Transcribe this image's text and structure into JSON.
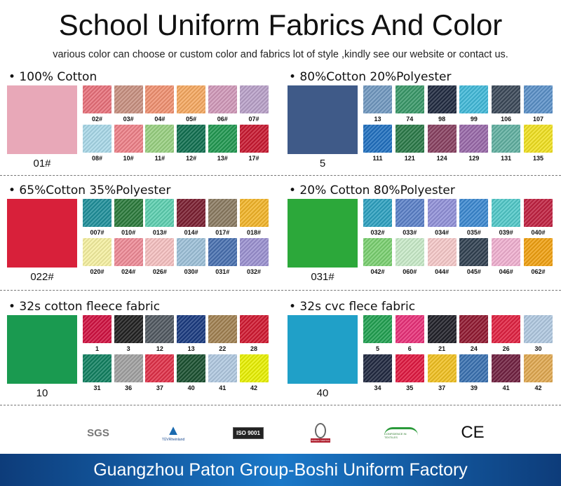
{
  "title": "School Uniform Fabrics And Color",
  "subtitle": "various color can choose or custom color and fabrics lot of style ,kindly see our website or contact us.",
  "sections": [
    {
      "title": "• 100% Cotton",
      "main": {
        "label": "01#",
        "color": "#e8a8b8"
      },
      "swatches": [
        {
          "label": "02#",
          "color": "#e8707a"
        },
        {
          "label": "03#",
          "color": "#c89080"
        },
        {
          "label": "04#",
          "color": "#f09070"
        },
        {
          "label": "05#",
          "color": "#f5a860"
        },
        {
          "label": "06#",
          "color": "#d098b8"
        },
        {
          "label": "07#",
          "color": "#b8a0c8"
        },
        {
          "label": "08#",
          "color": "#a8d8e8"
        },
        {
          "label": "10#",
          "color": "#ee8088"
        },
        {
          "label": "11#",
          "color": "#98d080"
        },
        {
          "label": "12#",
          "color": "#107050"
        },
        {
          "label": "13#",
          "color": "#209850"
        },
        {
          "label": "17#",
          "color": "#c81830"
        }
      ]
    },
    {
      "title": "• 80%Cotton 20%Polyester",
      "main": {
        "label": "5",
        "color": "#3f5a88"
      },
      "swatches": [
        {
          "label": "13",
          "color": "#7098c0"
        },
        {
          "label": "74",
          "color": "#389868"
        },
        {
          "label": "98",
          "color": "#202a40"
        },
        {
          "label": "99",
          "color": "#40b8d8"
        },
        {
          "label": "106",
          "color": "#3a4858"
        },
        {
          "label": "107",
          "color": "#5a90c8"
        },
        {
          "label": "111",
          "color": "#2070c0"
        },
        {
          "label": "121",
          "color": "#2a7a48"
        },
        {
          "label": "124",
          "color": "#884060"
        },
        {
          "label": "129",
          "color": "#9868a8"
        },
        {
          "label": "131",
          "color": "#60b0a0"
        },
        {
          "label": "135",
          "color": "#f0e020"
        }
      ]
    },
    {
      "title": "• 65%Cotton 35%Polyester",
      "main": {
        "label": "022#",
        "color": "#d8203a"
      },
      "swatches": [
        {
          "label": "007#",
          "color": "#1e8f9a"
        },
        {
          "label": "010#",
          "color": "#2a7a3a"
        },
        {
          "label": "013#",
          "color": "#5ccfb0"
        },
        {
          "label": "014#",
          "color": "#7a1e30"
        },
        {
          "label": "017#",
          "color": "#8a7a60"
        },
        {
          "label": "018#",
          "color": "#f2b428"
        },
        {
          "label": "020#",
          "color": "#f5f0a0"
        },
        {
          "label": "024#",
          "color": "#ee8a96"
        },
        {
          "label": "026#",
          "color": "#f5c0c0"
        },
        {
          "label": "030#",
          "color": "#9cc0d8"
        },
        {
          "label": "031#",
          "color": "#4870b0"
        },
        {
          "label": "032#",
          "color": "#9a90d0"
        }
      ]
    },
    {
      "title": "• 20% Cotton 80%Polyester",
      "main": {
        "label": "031#",
        "color": "#2ca83a"
      },
      "swatches": [
        {
          "label": "032#",
          "color": "#2ca0c0"
        },
        {
          "label": "033#",
          "color": "#5a80c8"
        },
        {
          "label": "034#",
          "color": "#9090d8"
        },
        {
          "label": "035#",
          "color": "#3a88d0"
        },
        {
          "label": "039#",
          "color": "#50c8c8"
        },
        {
          "label": "040#",
          "color": "#c02040"
        },
        {
          "label": "042#",
          "color": "#7ad070"
        },
        {
          "label": "060#",
          "color": "#c8eac8"
        },
        {
          "label": "044#",
          "color": "#f5c8c8"
        },
        {
          "label": "045#",
          "color": "#304050"
        },
        {
          "label": "046#",
          "color": "#f0b0d0"
        },
        {
          "label": "062#",
          "color": "#f0a010"
        }
      ]
    },
    {
      "title": "• 32s cotton fleece fabric",
      "main": {
        "label": "10",
        "color": "#1a9a50"
      },
      "swatches": [
        {
          "label": "1",
          "color": "#d01040"
        },
        {
          "label": "3",
          "color": "#202020"
        },
        {
          "label": "12",
          "color": "#505860"
        },
        {
          "label": "13",
          "color": "#1a3a80"
        },
        {
          "label": "22",
          "color": "#a08050"
        },
        {
          "label": "28",
          "color": "#d01830"
        },
        {
          "label": "31",
          "color": "#108060"
        },
        {
          "label": "36",
          "color": "#a0a0a0"
        },
        {
          "label": "37",
          "color": "#e03048"
        },
        {
          "label": "40",
          "color": "#1a5030"
        },
        {
          "label": "41",
          "color": "#b0c8e0"
        },
        {
          "label": "42",
          "color": "#e8f000"
        }
      ]
    },
    {
      "title": "• 32s cvc flece fabric",
      "main": {
        "label": "40",
        "color": "#20a0c8"
      },
      "swatches": [
        {
          "label": "5",
          "color": "#20a050"
        },
        {
          "label": "6",
          "color": "#e83078"
        },
        {
          "label": "21",
          "color": "#202028"
        },
        {
          "label": "24",
          "color": "#901830"
        },
        {
          "label": "26",
          "color": "#e02040"
        },
        {
          "label": "30",
          "color": "#b0c8e0"
        },
        {
          "label": "34",
          "color": "#202840"
        },
        {
          "label": "35",
          "color": "#e01840"
        },
        {
          "label": "37",
          "color": "#f0c020"
        },
        {
          "label": "39",
          "color": "#3870b0"
        },
        {
          "label": "41",
          "color": "#702040"
        },
        {
          "label": "42",
          "color": "#e0a850"
        }
      ]
    }
  ],
  "logos": [
    {
      "name": "sgs",
      "text": "SGS"
    },
    {
      "name": "tuv-rheinland",
      "text": "TÜVRheinland"
    },
    {
      "name": "iso-9001",
      "text": "ISO 9001"
    },
    {
      "name": "bureau-veritas",
      "text": "BUREAU VERITAS"
    },
    {
      "name": "oeko-tex",
      "text": "CONFIDENCE IN TEXTILES"
    },
    {
      "name": "ce",
      "text": "CE"
    }
  ],
  "footer": "Guangzhou Paton Group-Boshi Uniform Factory"
}
